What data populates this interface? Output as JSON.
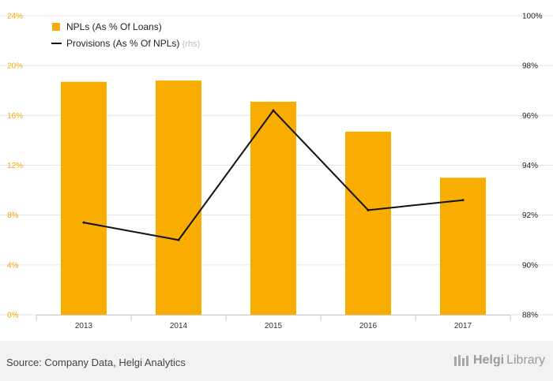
{
  "chart_data": {
    "type": "bar",
    "categories": [
      "2013",
      "2014",
      "2015",
      "2016",
      "2017"
    ],
    "series": [
      {
        "name": "NPLs (As % Of Loans)",
        "type": "bar",
        "axis": "left",
        "color": "#f9ad00",
        "values": [
          18.7,
          18.8,
          17.1,
          14.7,
          11.0
        ]
      },
      {
        "name": "Provisions (As % Of NPLs)",
        "name_suffix": "(rhs)",
        "type": "line",
        "axis": "right",
        "color": "#111111",
        "values": [
          91.7,
          91.0,
          96.2,
          92.2,
          92.6
        ]
      }
    ],
    "y_left": {
      "min": 0,
      "max": 24,
      "ticks": [
        "0%",
        "4%",
        "8%",
        "12%",
        "16%",
        "20%",
        "24%"
      ]
    },
    "y_right": {
      "min": 88,
      "max": 100,
      "ticks": [
        "88%",
        "90%",
        "92%",
        "94%",
        "96%",
        "98%",
        "100%"
      ]
    },
    "grid": true,
    "legend_position": "top-left"
  },
  "footer": {
    "source": "Source: Company Data, Helgi Analytics",
    "logo_part1": "Helgi",
    "logo_part2": "Library"
  }
}
